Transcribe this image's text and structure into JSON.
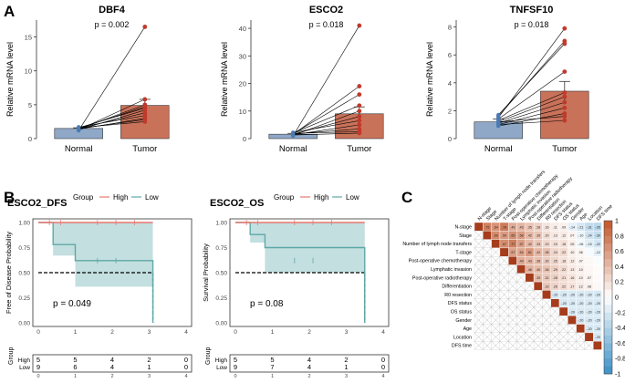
{
  "panel_labels": {
    "a": "A",
    "b": "B",
    "c": "C"
  },
  "colors": {
    "normal": "#8fa8c8",
    "tumor": "#c9725a",
    "line": "#000000",
    "point_tumor": "#c0392b",
    "point_normal": "#4a7bb5",
    "km_high": "#e8776f",
    "km_low": "#5fa8a8",
    "km_fill": "#bcdcdc",
    "corr_pos": "#c0562a",
    "corr_neg": "#3b8fc4"
  },
  "chart_data": [
    {
      "type": "bar",
      "id": "dbf4",
      "title": "DBF4",
      "pvalue": "p = 0.002",
      "ylabel": "Relative mRNA level",
      "categories": [
        "Normal",
        "Tumor"
      ],
      "values": [
        1.5,
        4.9
      ],
      "errors": [
        0.1,
        0.9
      ],
      "ylim": [
        0,
        17.5
      ],
      "yticks": [
        0,
        5,
        10,
        15
      ],
      "pairs": [
        [
          1.2,
          16.5
        ],
        [
          1.3,
          5.8
        ],
        [
          1.4,
          5.0
        ],
        [
          1.5,
          4.7
        ],
        [
          1.6,
          4.5
        ],
        [
          1.3,
          4.2
        ],
        [
          1.5,
          3.8
        ],
        [
          1.7,
          3.4
        ],
        [
          1.4,
          3.0
        ],
        [
          1.5,
          2.8
        ],
        [
          1.6,
          2.5
        ]
      ]
    },
    {
      "type": "bar",
      "id": "esco2",
      "title": "ESCO2",
      "pvalue": "p = 0.018",
      "ylabel": "Relative mRNA level",
      "categories": [
        "Normal",
        "Tumor"
      ],
      "values": [
        1.6,
        9.0
      ],
      "errors": [
        0.3,
        2.5
      ],
      "ylim": [
        0,
        43
      ],
      "yticks": [
        0,
        10,
        20,
        30,
        40
      ],
      "pairs": [
        [
          1.0,
          41.0
        ],
        [
          1.5,
          19.0
        ],
        [
          1.8,
          16.0
        ],
        [
          2.0,
          12.0
        ],
        [
          1.2,
          10.0
        ],
        [
          1.6,
          8.0
        ],
        [
          2.2,
          6.5
        ],
        [
          1.4,
          5.0
        ],
        [
          1.7,
          3.5
        ],
        [
          1.9,
          2.5
        ],
        [
          1.3,
          2.0
        ]
      ]
    },
    {
      "type": "bar",
      "id": "tnfsf10",
      "title": "TNFSF10",
      "pvalue": "p = 0.018",
      "ylabel": "Relative mRNA level",
      "categories": [
        "Normal",
        "Tumor"
      ],
      "values": [
        1.2,
        3.4
      ],
      "errors": [
        0.2,
        0.7
      ],
      "ylim": [
        0,
        8.5
      ],
      "yticks": [
        0,
        2,
        4,
        6,
        8
      ],
      "pairs": [
        [
          1.5,
          7.9
        ],
        [
          1.6,
          7.0
        ],
        [
          1.7,
          6.8
        ],
        [
          1.4,
          4.8
        ],
        [
          1.3,
          3.3
        ],
        [
          1.2,
          3.0
        ],
        [
          1.1,
          2.6
        ],
        [
          1.0,
          2.2
        ],
        [
          0.9,
          1.8
        ],
        [
          1.2,
          1.6
        ],
        [
          1.0,
          1.3
        ]
      ]
    },
    {
      "type": "line",
      "id": "km_dfs",
      "title": "ESCO2_DFS",
      "legend_title": "Group",
      "legend": [
        "High",
        "Low"
      ],
      "ylabel": "Free of Disease Probability",
      "pvalue": "p = 0.049",
      "xlim": [
        0,
        4
      ],
      "ylim": [
        0,
        1
      ],
      "xticks": [
        0,
        1,
        2,
        3,
        4
      ],
      "yticks": [
        "0.00",
        "0.25",
        "0.50",
        "0.75",
        "1.00"
      ],
      "high": {
        "x": [
          0,
          3.1
        ],
        "y": [
          1.0,
          1.0
        ]
      },
      "low": {
        "x": [
          0,
          0.4,
          0.4,
          1.0,
          1.0,
          3.1,
          3.1
        ],
        "y": [
          1.0,
          1.0,
          0.78,
          0.78,
          0.62,
          0.62,
          0.0
        ]
      },
      "ci_low": {
        "x": [
          0,
          0.4,
          0.4,
          1.0,
          1.0,
          3.1
        ],
        "upper": [
          1.0,
          1.0,
          1.0,
          1.0,
          1.0,
          1.0
        ],
        "lower": [
          1.0,
          1.0,
          0.67,
          0.67,
          0.36,
          0.36
        ]
      },
      "risk_table": {
        "title": "Group",
        "rows": [
          {
            "name": "High",
            "values": [
              "5",
              "5",
              "4",
              "2",
              "0"
            ]
          },
          {
            "name": "Low",
            "values": [
              "9",
              "6",
              "4",
              "1",
              "0"
            ]
          }
        ],
        "xticks": [
          "0",
          "1",
          "2",
          "3",
          "4"
        ]
      }
    },
    {
      "type": "line",
      "id": "km_os",
      "title": "ESCO2_OS",
      "legend_title": "Group",
      "legend": [
        "High",
        "Low"
      ],
      "ylabel": "Survival Probability",
      "pvalue": "p = 0.08",
      "xlim": [
        0,
        4
      ],
      "ylim": [
        0,
        1
      ],
      "xticks": [
        0,
        1,
        2,
        3,
        4
      ],
      "yticks": [
        "0.00",
        "0.25",
        "0.50",
        "0.75",
        "1.00"
      ],
      "high": {
        "x": [
          0,
          3.5
        ],
        "y": [
          1.0,
          1.0
        ]
      },
      "low": {
        "x": [
          0,
          0.4,
          0.4,
          0.8,
          0.8,
          3.5,
          3.5
        ],
        "y": [
          1.0,
          1.0,
          0.88,
          0.88,
          0.75,
          0.75,
          0.0
        ]
      },
      "ci_low": {
        "x": [
          0,
          0.4,
          0.4,
          0.8,
          0.8,
          3.5
        ],
        "upper": [
          1.0,
          1.0,
          1.0,
          1.0,
          1.0,
          1.0
        ],
        "lower": [
          1.0,
          1.0,
          0.8,
          0.8,
          0.5,
          0.5
        ]
      },
      "risk_table": {
        "title": "Group",
        "rows": [
          {
            "name": "High",
            "values": [
              "5",
              "5",
              "4",
              "2",
              "0"
            ]
          },
          {
            "name": "Low",
            "values": [
              "9",
              "7",
              "4",
              "1",
              "0"
            ]
          }
        ],
        "xticks": [
          "0",
          "1",
          "2",
          "3",
          "4"
        ]
      }
    },
    {
      "type": "heatmap",
      "id": "corr",
      "variables": [
        "N-stage",
        "Stage",
        "Number of lymph node transfers",
        "T-stage",
        "Post-operative chemotherapy",
        "Lymphatic invasion",
        "Post-operative radiotherapy",
        "Differentiation",
        "R0 resection",
        "DFS status",
        "OS status",
        "Gender",
        "Age",
        "Location",
        "DFS time"
      ],
      "colorbar_ticks": [
        "1",
        "0.8",
        "0.6",
        "0.4",
        "0.2",
        "0",
        "-0.2",
        "-0.4",
        "-0.6",
        "-0.8",
        "-1"
      ],
      "values": [
        [
          0.81,
          0.75,
          0.64,
          0.78,
          0.49,
          0.43,
          0.35,
          0.28,
          0.16,
          0.11,
          0.09,
          -0.14,
          -0.21,
          -0.31,
          -0.35
        ],
        [
          0.63,
          0.69,
          0.59,
          0.65,
          0.58,
          0.42,
          0.35,
          0.2,
          0.13,
          0.12,
          0.07,
          -0.1,
          -0.24,
          -0.3,
          -0.28
        ],
        [
          0.55,
          0.67,
          0.77,
          0.57,
          0.42,
          0.33,
          0.23,
          0.19,
          0.18,
          0.09,
          -0.06,
          -0.15,
          -0.22,
          -0.27,
          -0.2
        ],
        [
          0.61,
          0.57,
          0.54,
          0.61,
          0.42,
          0.38,
          0.24,
          0.22,
          0.1,
          0.06,
          -0.04,
          -0.12,
          -0.18,
          -0.22,
          -0.17
        ],
        [
          0.54,
          0.49,
          0.43,
          0.38,
          0.3,
          0.25,
          0.18,
          0.12,
          0.07,
          0.04,
          -0.03,
          -0.08,
          -0.12,
          -0.16,
          -0.14
        ],
        [
          0.5,
          0.46,
          0.4,
          0.36,
          0.29,
          0.22,
          0.13,
          0.1,
          0.05,
          0.02,
          -0.05,
          -0.09,
          -0.11,
          -0.13,
          -0.1
        ],
        [
          0.43,
          0.39,
          0.32,
          0.28,
          0.21,
          0.16,
          0.1,
          0.07,
          0.03,
          -0.01,
          -0.06,
          -0.08,
          -0.1,
          -0.12,
          -0.09
        ],
        [
          0.39,
          0.33,
          0.26,
          0.22,
          0.17,
          0.12,
          0.08,
          0.04,
          -0.02,
          -0.07,
          -0.4,
          -0.42,
          -0.1,
          -0.08,
          -0.05
        ]
      ]
    }
  ]
}
